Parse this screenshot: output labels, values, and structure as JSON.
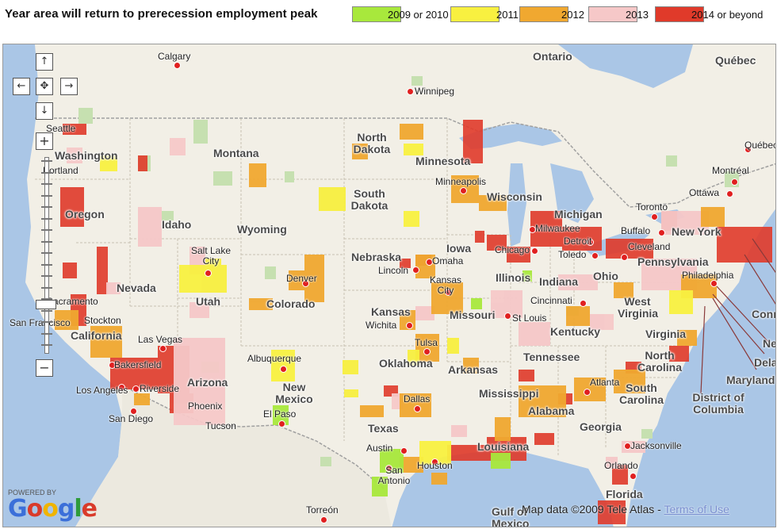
{
  "legend": {
    "title": "Year area will return to prerecession employment peak",
    "items": [
      {
        "label": "2009 or 2010",
        "color": "#a8e83c"
      },
      {
        "label": "2011",
        "color": "#f8f040"
      },
      {
        "label": "2012",
        "color": "#f0a830"
      },
      {
        "label": "2013",
        "color": "#f6c8c8"
      },
      {
        "label": "2014 or beyond",
        "color": "#e03a2a"
      }
    ]
  },
  "map": {
    "states": [
      "Washington",
      "Oregon",
      "Idaho",
      "Montana",
      "Wyoming",
      "Nevada",
      "Utah",
      "California",
      "Arizona",
      "Colorado",
      "New Mexico",
      "North Dakota",
      "South Dakota",
      "Nebraska",
      "Kansas",
      "Oklahoma",
      "Texas",
      "Minnesota",
      "Iowa",
      "Missouri",
      "Arkansas",
      "Louisiana",
      "Wisconsin",
      "Illinois",
      "Michigan",
      "Indiana",
      "Ohio",
      "Kentucky",
      "Tennessee",
      "Mississippi",
      "Alabama",
      "Georgia",
      "Florida",
      "South Carolina",
      "North Carolina",
      "Virginia",
      "West Virginia",
      "Pennsylvania",
      "New York",
      "Ontario",
      "Québec",
      "Gulf of Mexico",
      "District of Columbia",
      "Maryland",
      "Delaware",
      "New Jersey",
      "Connecticut"
    ],
    "cities": [
      "Calgary",
      "Winnipeg",
      "Seattle",
      "Portland",
      "Salt Lake City",
      "Sacramento",
      "Stockton",
      "San Francisco",
      "Las Vegas",
      "Bakersfield",
      "Los Angeles",
      "Riverside",
      "San Diego",
      "Phoenix",
      "Tucson",
      "Albuquerque",
      "El Paso",
      "Denver",
      "Minneapolis",
      "Omaha",
      "Lincoln",
      "Kansas City",
      "Wichita",
      "Tulsa",
      "Dallas",
      "Austin",
      "San Antonio",
      "Houston",
      "Chicago",
      "Milwaukee",
      "Detroit",
      "Toledo",
      "Cleveland",
      "Buffalo",
      "Toronto",
      "Ottawa",
      "Montréal",
      "Philadelphia",
      "Cincinnati",
      "St Louis",
      "Atlanta",
      "Jacksonville",
      "Orlando",
      "Torreón",
      "Québec"
    ],
    "zoom_controls": {
      "up": "↑",
      "left": "←",
      "right": "→",
      "down": "↓",
      "center": "✥",
      "zoom_in": "+",
      "zoom_out": "−"
    },
    "powered_by": "POWERED BY",
    "google": "Google",
    "attribution": "Map data ©2009 Tele Atlas - ",
    "terms": "Terms of Use"
  }
}
